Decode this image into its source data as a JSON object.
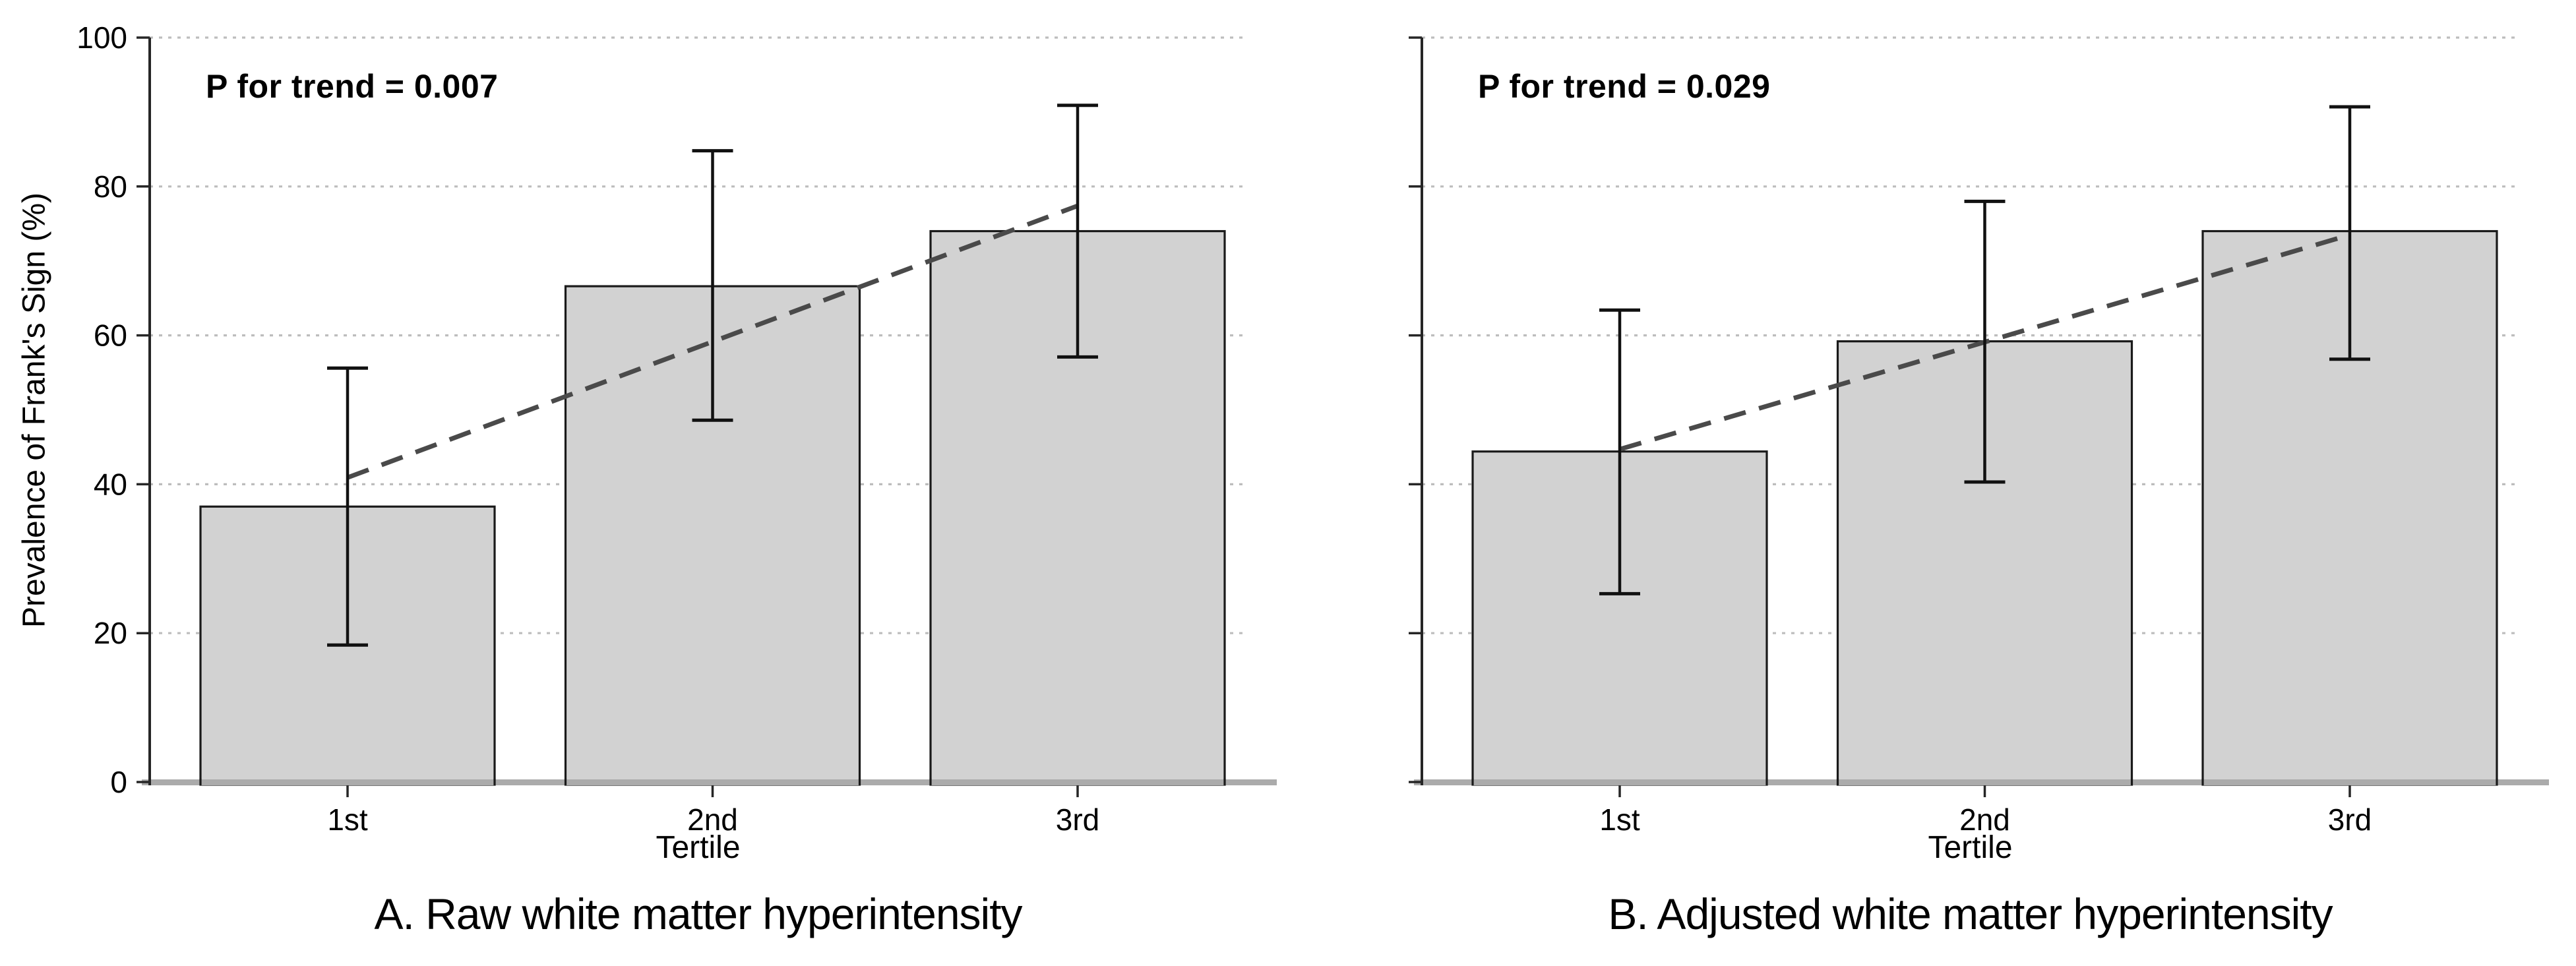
{
  "figure": {
    "background": "#ffffff",
    "ylabel": "Prevalence of Frank's Sign (%)",
    "colors": {
      "bar_fill": "#d2d2d2",
      "bar_edge": "#1a1a1a",
      "error_bar": "#111111",
      "trend_line": "#4a4a4a",
      "gridline": "#bdbdbd",
      "left_spine": "#262626",
      "bottom_spine": "#ababab",
      "tick": "#262626",
      "text": "#000000"
    }
  },
  "chart_data": [
    {
      "type": "bar",
      "title": "A. Raw white matter hyperintensity",
      "annotation": "P for trend = 0.007",
      "categories": [
        "1st",
        "2nd",
        "3rd"
      ],
      "values": [
        37.0,
        66.6,
        74.0
      ],
      "error_low": [
        18.4,
        48.6,
        57.1
      ],
      "error_high": [
        55.6,
        84.8,
        90.9
      ],
      "trend_line": {
        "style": "dashed",
        "start_value": 40.9,
        "end_value": 77.4
      },
      "xlabel": "Tertile",
      "ylabel": "Prevalence of Frank's Sign (%)",
      "ylim": [
        0,
        100
      ],
      "yticks": [
        0,
        20,
        40,
        60,
        80,
        100
      ],
      "grid": "horizontal dotted",
      "y_tick_labels_visible": true
    },
    {
      "type": "bar",
      "title": "B. Adjusted white matter hyperintensity",
      "annotation": "P for trend = 0.029",
      "categories": [
        "1st",
        "2nd",
        "3rd"
      ],
      "values": [
        44.4,
        59.2,
        74.0
      ],
      "error_low": [
        25.3,
        40.3,
        56.8
      ],
      "error_high": [
        63.4,
        78.0,
        90.7
      ],
      "trend_line": {
        "style": "dashed",
        "start_value": 44.7,
        "end_value": 73.5
      },
      "xlabel": "Tertile",
      "ylabel": "",
      "ylim": [
        0,
        100
      ],
      "yticks": [
        0,
        20,
        40,
        60,
        80,
        100
      ],
      "grid": "horizontal dotted",
      "y_tick_labels_visible": false
    }
  ]
}
